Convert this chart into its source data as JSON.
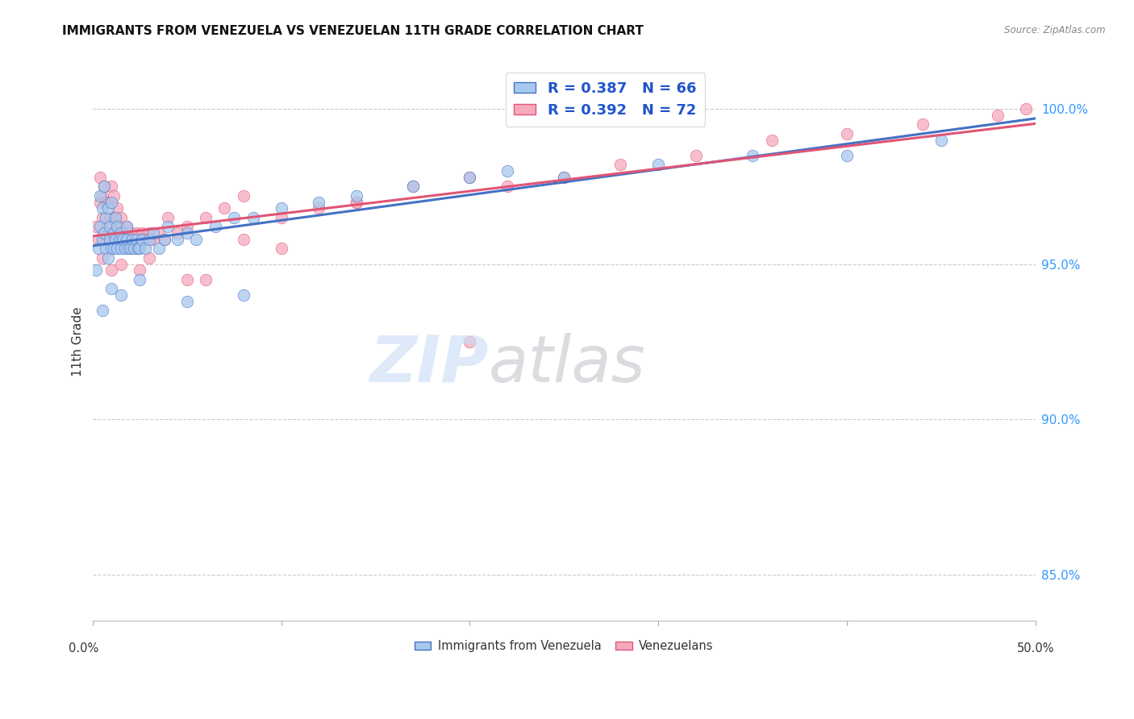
{
  "title": "IMMIGRANTS FROM VENEZUELA VS VENEZUELAN 11TH GRADE CORRELATION CHART",
  "source": "Source: ZipAtlas.com",
  "ylabel": "11th Grade",
  "right_yticks": [
    85.0,
    90.0,
    95.0,
    100.0
  ],
  "right_yticklabels": [
    "85.0%",
    "90.0%",
    "95.0%",
    "100.0%"
  ],
  "xmin": 0.0,
  "xmax": 50.0,
  "ymin": 83.5,
  "ymax": 101.5,
  "legend_blue_r": "R = 0.387",
  "legend_blue_n": "N = 66",
  "legend_pink_r": "R = 0.392",
  "legend_pink_n": "N = 72",
  "blue_color": "#A8C8EE",
  "pink_color": "#F5AABE",
  "line_blue": "#4472C4",
  "line_pink": "#E05575",
  "legend_text_color": "#2255CC",
  "blue_scatter_x": [
    0.2,
    0.3,
    0.4,
    0.4,
    0.5,
    0.5,
    0.6,
    0.6,
    0.7,
    0.7,
    0.8,
    0.8,
    0.9,
    0.9,
    1.0,
    1.0,
    1.1,
    1.1,
    1.2,
    1.2,
    1.3,
    1.3,
    1.4,
    1.5,
    1.5,
    1.6,
    1.7,
    1.8,
    1.8,
    1.9,
    2.0,
    2.1,
    2.2,
    2.3,
    2.4,
    2.5,
    2.6,
    2.8,
    3.0,
    3.2,
    3.5,
    3.8,
    4.0,
    4.5,
    5.0,
    5.5,
    6.5,
    7.5,
    8.5,
    10.0,
    12.0,
    14.0,
    17.0,
    20.0,
    22.0,
    25.0,
    30.0,
    35.0,
    40.0,
    45.0,
    0.5,
    1.0,
    1.5,
    2.5,
    5.0,
    8.0
  ],
  "blue_scatter_y": [
    94.8,
    95.5,
    96.2,
    97.2,
    95.8,
    96.8,
    96.0,
    97.5,
    95.5,
    96.5,
    95.2,
    96.8,
    95.8,
    96.2,
    95.5,
    97.0,
    95.5,
    96.0,
    95.8,
    96.5,
    95.5,
    96.2,
    95.8,
    95.5,
    96.0,
    95.8,
    95.5,
    95.8,
    96.2,
    95.5,
    95.5,
    95.8,
    95.5,
    95.8,
    95.5,
    95.5,
    95.8,
    95.5,
    95.8,
    96.0,
    95.5,
    95.8,
    96.2,
    95.8,
    96.0,
    95.8,
    96.2,
    96.5,
    96.5,
    96.8,
    97.0,
    97.2,
    97.5,
    97.8,
    98.0,
    97.8,
    98.2,
    98.5,
    98.5,
    99.0,
    93.5,
    94.2,
    94.0,
    94.5,
    93.8,
    94.0
  ],
  "pink_scatter_x": [
    0.2,
    0.3,
    0.4,
    0.4,
    0.5,
    0.5,
    0.6,
    0.6,
    0.7,
    0.7,
    0.8,
    0.8,
    0.9,
    1.0,
    1.0,
    1.1,
    1.1,
    1.2,
    1.2,
    1.3,
    1.3,
    1.4,
    1.5,
    1.5,
    1.6,
    1.7,
    1.8,
    1.9,
    2.0,
    2.1,
    2.2,
    2.3,
    2.4,
    2.5,
    2.6,
    2.8,
    3.0,
    3.2,
    3.5,
    3.8,
    4.0,
    4.5,
    5.0,
    6.0,
    7.0,
    8.0,
    10.0,
    12.0,
    14.0,
    17.0,
    20.0,
    22.0,
    25.0,
    28.0,
    32.0,
    36.0,
    40.0,
    44.0,
    48.0,
    49.5,
    0.5,
    1.0,
    1.5,
    2.5,
    5.0,
    8.0,
    14.0,
    20.0,
    2.0,
    3.0,
    6.0,
    10.0
  ],
  "pink_scatter_y": [
    96.2,
    95.8,
    97.0,
    97.8,
    96.5,
    97.2,
    96.0,
    97.5,
    95.8,
    97.0,
    96.2,
    97.0,
    96.5,
    96.2,
    97.5,
    96.0,
    97.2,
    95.8,
    96.5,
    96.0,
    96.8,
    96.2,
    96.0,
    96.5,
    95.8,
    96.0,
    96.2,
    95.8,
    96.0,
    95.8,
    95.8,
    96.0,
    95.5,
    95.8,
    96.0,
    95.8,
    96.0,
    95.8,
    96.0,
    95.8,
    96.5,
    96.0,
    96.2,
    96.5,
    96.8,
    95.8,
    96.5,
    96.8,
    97.0,
    97.5,
    97.8,
    97.5,
    97.8,
    98.2,
    98.5,
    99.0,
    99.2,
    99.5,
    99.8,
    100.0,
    95.2,
    94.8,
    95.0,
    94.8,
    94.5,
    97.2,
    97.0,
    92.5,
    95.5,
    95.2,
    94.5,
    95.5
  ]
}
